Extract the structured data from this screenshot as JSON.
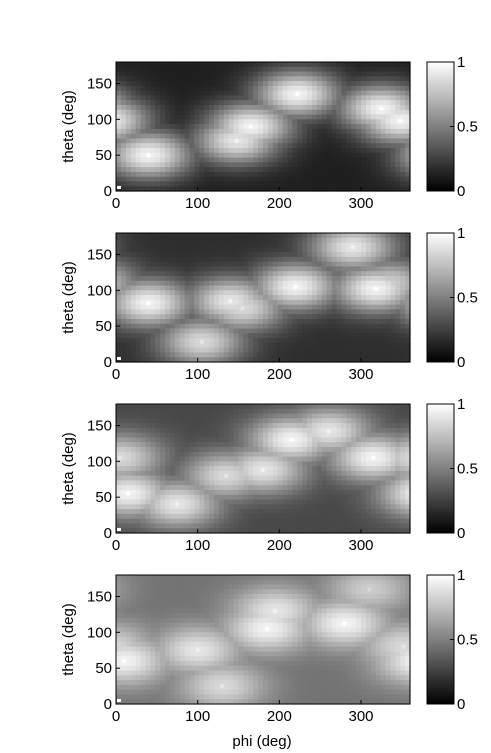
{
  "figure": {
    "xlabel": "phi (deg)"
  },
  "colors": {
    "cmap_low": "#000000",
    "cmap_high": "#ffffff",
    "axis": "#000000",
    "background": "#ffffff"
  },
  "chart_data": [
    {
      "type": "heatmap",
      "title": "",
      "xlabel": "",
      "ylabel": "theta (deg)",
      "xlim": [
        0,
        360
      ],
      "ylim": [
        0,
        180
      ],
      "xticks": [
        0,
        100,
        200,
        300
      ],
      "yticks": [
        0,
        50,
        100,
        150
      ],
      "colorbar": {
        "range": [
          0,
          1
        ],
        "ticks": [
          0,
          0.5,
          1
        ]
      },
      "grid": false,
      "background_level": 0.12,
      "peaks": [
        {
          "x": 40,
          "y": 50,
          "value": 0.95
        },
        {
          "x": 148,
          "y": 70,
          "value": 0.9
        },
        {
          "x": 165,
          "y": 90,
          "value": 0.95
        },
        {
          "x": 222,
          "y": 135,
          "value": 0.95
        },
        {
          "x": 325,
          "y": 115,
          "value": 0.95
        },
        {
          "x": 348,
          "y": 98,
          "value": 0.95
        }
      ]
    },
    {
      "type": "heatmap",
      "title": "",
      "xlabel": "",
      "ylabel": "theta (deg)",
      "xlim": [
        0,
        360
      ],
      "ylim": [
        0,
        180
      ],
      "xticks": [
        0,
        100,
        200,
        300
      ],
      "yticks": [
        0,
        50,
        100,
        150
      ],
      "colorbar": {
        "range": [
          0,
          1
        ],
        "ticks": [
          0,
          0.5,
          1
        ]
      },
      "grid": false,
      "background_level": 0.18,
      "peaks": [
        {
          "x": 40,
          "y": 82,
          "value": 0.95
        },
        {
          "x": 140,
          "y": 85,
          "value": 0.9
        },
        {
          "x": 155,
          "y": 75,
          "value": 0.85
        },
        {
          "x": 220,
          "y": 105,
          "value": 0.95
        },
        {
          "x": 290,
          "y": 160,
          "value": 0.9
        },
        {
          "x": 318,
          "y": 102,
          "value": 0.95
        },
        {
          "x": 335,
          "y": 110,
          "value": 0.8
        },
        {
          "x": 105,
          "y": 28,
          "value": 0.85
        }
      ]
    },
    {
      "type": "heatmap",
      "title": "",
      "xlabel": "",
      "ylabel": "theta (deg)",
      "xlim": [
        0,
        360
      ],
      "ylim": [
        0,
        180
      ],
      "xticks": [
        0,
        100,
        200,
        300
      ],
      "yticks": [
        0,
        50,
        100,
        150
      ],
      "colorbar": {
        "range": [
          0,
          1
        ],
        "ticks": [
          0,
          0.5,
          1
        ]
      },
      "grid": false,
      "background_level": 0.28,
      "peaks": [
        {
          "x": 15,
          "y": 55,
          "value": 0.95
        },
        {
          "x": 75,
          "y": 40,
          "value": 0.9
        },
        {
          "x": 135,
          "y": 80,
          "value": 0.85
        },
        {
          "x": 180,
          "y": 88,
          "value": 0.9
        },
        {
          "x": 215,
          "y": 130,
          "value": 0.95
        },
        {
          "x": 260,
          "y": 142,
          "value": 0.9
        },
        {
          "x": 315,
          "y": 105,
          "value": 0.95
        },
        {
          "x": 5,
          "y": 105,
          "value": 0.85
        }
      ]
    },
    {
      "type": "heatmap",
      "title": "",
      "xlabel": "phi (deg)",
      "ylabel": "theta (deg)",
      "xlim": [
        0,
        360
      ],
      "ylim": [
        0,
        180
      ],
      "xticks": [
        0,
        100,
        200,
        300
      ],
      "yticks": [
        0,
        50,
        100,
        150
      ],
      "colorbar": {
        "range": [
          0,
          1
        ],
        "ticks": [
          0,
          0.5,
          1
        ]
      },
      "grid": false,
      "background_level": 0.45,
      "peaks": [
        {
          "x": 10,
          "y": 60,
          "value": 0.95
        },
        {
          "x": 100,
          "y": 75,
          "value": 0.9
        },
        {
          "x": 130,
          "y": 25,
          "value": 0.85
        },
        {
          "x": 185,
          "y": 105,
          "value": 0.95
        },
        {
          "x": 195,
          "y": 130,
          "value": 0.9
        },
        {
          "x": 280,
          "y": 112,
          "value": 0.95
        },
        {
          "x": 310,
          "y": 160,
          "value": 0.8
        },
        {
          "x": 352,
          "y": 80,
          "value": 0.85
        }
      ]
    }
  ]
}
